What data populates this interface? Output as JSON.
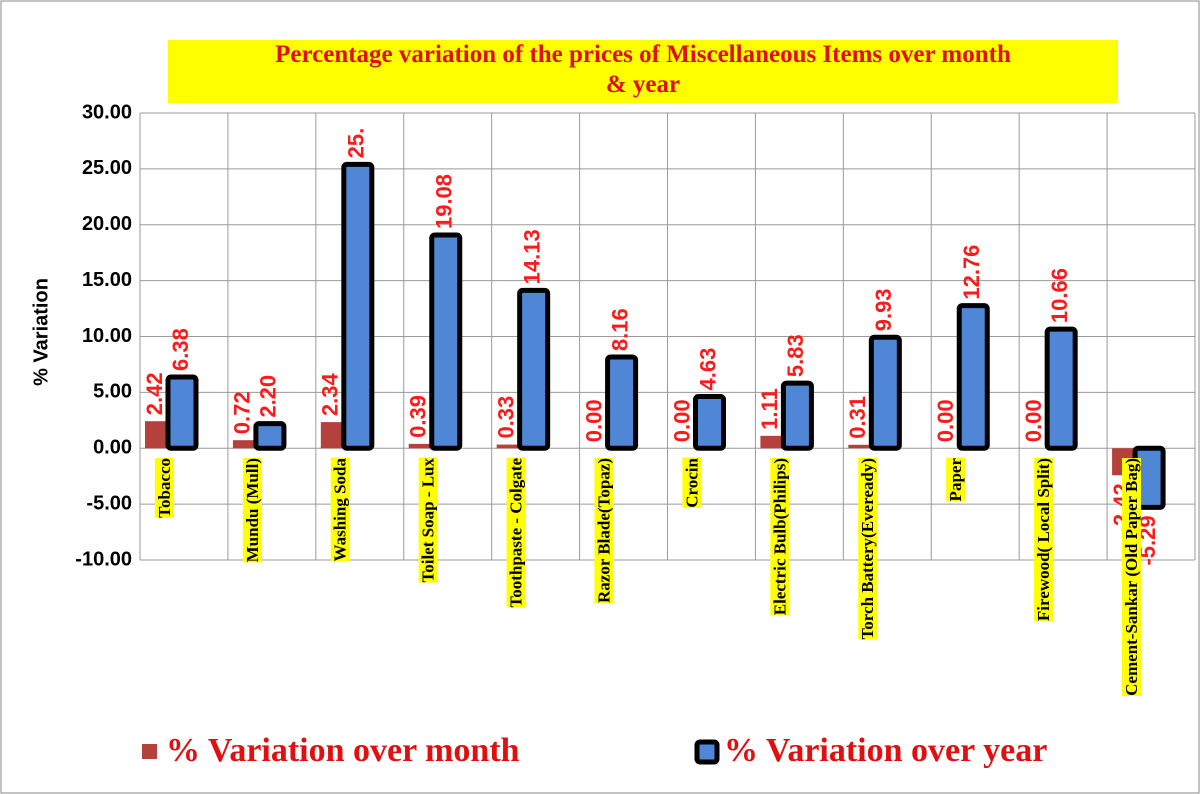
{
  "chart_data": {
    "type": "bar",
    "title": "Percentage variation of the prices of Miscellaneous Items over month & year",
    "y_label": "% Variation",
    "categories": [
      "Tobacco",
      "Mundu (Mull)",
      "Washing Soda",
      "Toilet Soap - Lux",
      "Toothpaste - Colgate",
      "Razor Blade(Topaz)",
      "Crocin",
      "Electric Bulb(Philips)",
      "Torch Battery(Eveready)",
      "Paper",
      "Firewood( Local Split)",
      "Cement-Sankar (Old Paper Bag)"
    ],
    "series": [
      {
        "name": "% Variation over month",
        "color": "#b5413d",
        "values": [
          2.42,
          0.72,
          2.34,
          0.39,
          0.33,
          0.0,
          0.0,
          1.11,
          0.31,
          0.0,
          0.0,
          -2.42
        ],
        "value_labels": [
          "2.42",
          "0.72",
          "2.34",
          "0.39",
          "0.33",
          "0.00",
          "0.00",
          "1.11",
          "0.31",
          "0.00",
          "0.00",
          "-2.42"
        ]
      },
      {
        "name": "% Variation over year",
        "color": "#4f86d6",
        "values": [
          6.38,
          2.2,
          25.4,
          19.08,
          14.13,
          8.16,
          4.63,
          5.83,
          9.93,
          12.76,
          10.66,
          -5.29
        ],
        "value_labels": [
          "6.38",
          "2.20",
          "25.",
          "19.08",
          "14.13",
          "8.16",
          "4.63",
          "5.83",
          "9.93",
          "12.76",
          "10.66",
          "-5.29"
        ]
      }
    ],
    "ylim": [
      -10,
      30
    ],
    "yticks": [
      {
        "value": -10,
        "label": "-10.00"
      },
      {
        "value": -5,
        "label": "-5.00"
      },
      {
        "value": 0,
        "label": "0.00"
      },
      {
        "value": 5,
        "label": "5.00"
      },
      {
        "value": 10,
        "label": "10.00"
      },
      {
        "value": 15,
        "label": "15.00"
      },
      {
        "value": 20,
        "label": "20.00"
      },
      {
        "value": 25,
        "label": "25.00"
      },
      {
        "value": 30,
        "label": "30.00"
      }
    ],
    "grid": true
  }
}
